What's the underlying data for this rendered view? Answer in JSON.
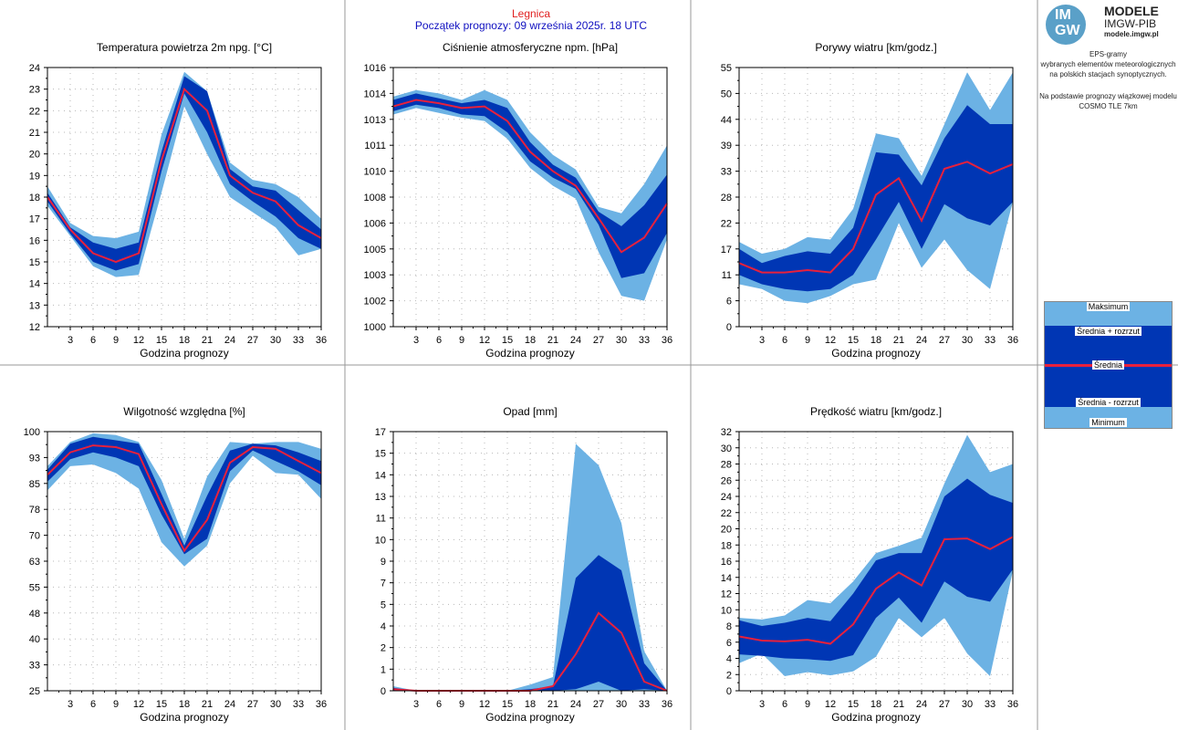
{
  "header": {
    "station": "Legnica",
    "start": "Początek prognozy: 09 września 2025r. 18 UTC"
  },
  "brand": {
    "logo_top": "IM",
    "logo_bottom": "GW",
    "name": "MODELE",
    "org": "IMGW-PIB",
    "url": "modele.imgw.pl",
    "desc1": "EPS-gramy\nwybranych elementów meteorologicznych\nna polskich stacjach  synoptycznych.",
    "desc2": "Na podstawie prognozy wiązkowej modelu\nCOSMO TLE 7km"
  },
  "legend": {
    "max": "Maksimum",
    "upper": "Średnia + rozrzut",
    "mean": "Średnia",
    "lower": "Średnia - rozrzut",
    "min": "Minimum"
  },
  "colors": {
    "outer": "#6cb2e4",
    "inner": "#0036b4",
    "mean": "#e8203c",
    "grid": "#b8b8b8"
  },
  "chart_data": [
    {
      "type": "area",
      "title": "Temperatura powietrza 2m npg. [°C]",
      "xlabel": "Godzina prognozy",
      "x": [
        0,
        3,
        6,
        9,
        12,
        15,
        18,
        21,
        24,
        27,
        30,
        33,
        36
      ],
      "xticks": [
        "3",
        "6",
        "9",
        "12",
        "15",
        "18",
        "21",
        "24",
        "27",
        "30",
        "33",
        "36"
      ],
      "yticks": [
        "12",
        "13",
        "14",
        "15",
        "16",
        "17",
        "18",
        "19",
        "20",
        "21",
        "22",
        "23",
        "24"
      ],
      "ylim": [
        12,
        24
      ],
      "max": [
        18.5,
        16.8,
        16.2,
        16.1,
        16.4,
        20.9,
        23.8,
        22.9,
        19.6,
        18.8,
        18.6,
        18.0,
        17.0
      ],
      "upper": [
        18.2,
        16.6,
        15.9,
        15.6,
        15.9,
        20.1,
        23.6,
        22.9,
        19.3,
        18.5,
        18.3,
        17.4,
        16.5
      ],
      "mean": [
        18.0,
        16.5,
        15.4,
        15.0,
        15.4,
        19.7,
        23.0,
        22.0,
        19.0,
        18.2,
        17.8,
        16.7,
        16.1
      ],
      "lower": [
        17.8,
        16.3,
        15.0,
        14.6,
        14.9,
        19.2,
        22.8,
        21.0,
        18.6,
        17.8,
        17.1,
        16.1,
        15.6
      ],
      "min": [
        17.6,
        16.2,
        14.8,
        14.3,
        14.4,
        18.2,
        22.2,
        20.0,
        18.0,
        17.3,
        16.6,
        15.3,
        15.6
      ]
    },
    {
      "type": "area",
      "title": "Ciśnienie atmosferyczne npm. [hPa]",
      "xlabel": "Godzina prognozy",
      "x": [
        0,
        3,
        6,
        9,
        12,
        15,
        18,
        21,
        24,
        27,
        30,
        33,
        36
      ],
      "xticks": [
        "3",
        "6",
        "9",
        "12",
        "15",
        "18",
        "21",
        "24",
        "27",
        "30",
        "33",
        "36"
      ],
      "yticks": [
        "1000",
        "1002",
        "1003",
        "1005",
        "1006",
        "1008",
        "1010",
        "1011",
        "1013",
        "1014",
        "1016"
      ],
      "ylim": [
        1000,
        1016
      ],
      "max": [
        1014.2,
        1014.6,
        1014.4,
        1014.0,
        1014.6,
        1014.0,
        1012.0,
        1010.6,
        1009.7,
        1007.4,
        1007.0,
        1008.8,
        1011.2
      ],
      "upper": [
        1014.0,
        1014.4,
        1014.1,
        1013.8,
        1014.0,
        1013.5,
        1011.4,
        1010.0,
        1009.2,
        1007.1,
        1006.2,
        1007.5,
        1009.4
      ],
      "mean": [
        1013.6,
        1014.0,
        1013.8,
        1013.5,
        1013.6,
        1012.7,
        1010.8,
        1009.6,
        1008.7,
        1006.7,
        1004.6,
        1005.5,
        1007.6
      ],
      "lower": [
        1013.3,
        1013.7,
        1013.5,
        1013.1,
        1013.0,
        1012.0,
        1010.2,
        1009.2,
        1008.5,
        1006.3,
        1003.0,
        1003.3,
        1005.8
      ],
      "min": [
        1013.1,
        1013.5,
        1013.2,
        1012.9,
        1012.7,
        1011.6,
        1009.8,
        1008.7,
        1007.9,
        1004.6,
        1001.9,
        1001.6,
        1005.4
      ]
    },
    {
      "type": "area",
      "title": "Porywy wiatru [km/godz.]",
      "xlabel": "Godzina prognozy",
      "x": [
        0,
        3,
        6,
        9,
        12,
        15,
        18,
        21,
        24,
        27,
        30,
        33,
        36
      ],
      "xticks": [
        "3",
        "6",
        "9",
        "12",
        "15",
        "18",
        "21",
        "24",
        "27",
        "30",
        "33",
        "36"
      ],
      "yticks": [
        "0",
        "6",
        "11",
        "17",
        "22",
        "28",
        "33",
        "39",
        "44",
        "50",
        "55"
      ],
      "ylim": [
        0,
        55
      ],
      "max": [
        18.0,
        15.5,
        16.5,
        19.0,
        18.5,
        25.0,
        41.0,
        40.0,
        32.0,
        43.0,
        54.0,
        46.0,
        54.0
      ],
      "upper": [
        16.5,
        13.5,
        15.0,
        16.0,
        15.5,
        21.0,
        37.0,
        36.5,
        30.0,
        40.0,
        47.0,
        43.0,
        43.0
      ],
      "mean": [
        13.5,
        11.5,
        11.5,
        12.0,
        11.5,
        16.5,
        28.0,
        31.5,
        22.5,
        33.5,
        35.0,
        32.5,
        34.5
      ],
      "lower": [
        11.0,
        9.0,
        8.0,
        7.5,
        8.0,
        11.0,
        18.5,
        26.5,
        16.5,
        26.0,
        23.0,
        21.5,
        26.5
      ],
      "min": [
        9.0,
        8.0,
        5.5,
        5.0,
        6.5,
        9.0,
        10.0,
        22.0,
        12.5,
        18.5,
        12.0,
        8.0,
        26.5
      ]
    },
    {
      "type": "area",
      "title": "Wilgotność względna [%]",
      "xlabel": "Godzina prognozy",
      "x": [
        0,
        3,
        6,
        9,
        12,
        15,
        18,
        21,
        24,
        27,
        30,
        33,
        36
      ],
      "xticks": [
        "3",
        "6",
        "9",
        "12",
        "15",
        "18",
        "21",
        "24",
        "27",
        "30",
        "33",
        "36"
      ],
      "yticks": [
        "25",
        "33",
        "40",
        "48",
        "55",
        "63",
        "70",
        "78",
        "85",
        "93",
        "100"
      ],
      "ylim": [
        25,
        100
      ],
      "max": [
        90.0,
        97.0,
        99.5,
        99.0,
        97.0,
        86.0,
        69.0,
        87.0,
        97.0,
        96.5,
        97.0,
        97.0,
        95.0
      ],
      "upper": [
        89.0,
        96.5,
        98.5,
        97.5,
        96.5,
        82.0,
        67.0,
        81.5,
        94.5,
        96.5,
        96.0,
        94.0,
        91.5
      ],
      "mean": [
        87.5,
        94.0,
        96.0,
        95.5,
        93.5,
        79.0,
        65.5,
        74.5,
        91.0,
        95.5,
        95.0,
        91.5,
        88.0
      ],
      "lower": [
        85.5,
        92.0,
        94.0,
        92.5,
        90.0,
        76.0,
        64.5,
        69.0,
        88.5,
        94.5,
        91.5,
        88.5,
        84.5
      ],
      "min": [
        83.0,
        90.0,
        90.5,
        88.0,
        83.5,
        68.0,
        61.0,
        67.0,
        85.0,
        93.0,
        88.0,
        87.5,
        80.5
      ]
    },
    {
      "type": "area",
      "title": "Opad [mm]",
      "xlabel": "Godzina prognozy",
      "x": [
        0,
        3,
        6,
        9,
        12,
        15,
        18,
        21,
        24,
        27,
        30,
        33,
        36
      ],
      "xticks": [
        "3",
        "6",
        "9",
        "12",
        "15",
        "18",
        "21",
        "24",
        "27",
        "30",
        "33",
        "36"
      ],
      "yticks": [
        "0",
        "1",
        "2",
        "4",
        "5",
        "7",
        "9",
        "10",
        "11",
        "13",
        "14",
        "15",
        "17"
      ],
      "ylim": [
        0,
        17
      ],
      "max": [
        0.3,
        0.0,
        0.0,
        0.0,
        0.0,
        0.0,
        0.4,
        0.9,
        16.2,
        14.8,
        11.0,
        2.6,
        0.0
      ],
      "upper": [
        0.2,
        0.0,
        0.0,
        0.0,
        0.0,
        0.0,
        0.1,
        0.3,
        7.4,
        8.9,
        7.9,
        1.8,
        0.0
      ],
      "mean": [
        0.1,
        0.0,
        0.0,
        0.0,
        0.0,
        0.0,
        0.0,
        0.3,
        2.4,
        5.1,
        3.8,
        0.6,
        0.0
      ],
      "lower": [
        0.0,
        0.0,
        0.0,
        0.0,
        0.0,
        0.0,
        0.0,
        0.0,
        0.1,
        0.6,
        0.0,
        0.1,
        0.0
      ],
      "min": [
        0.0,
        0.0,
        0.0,
        0.0,
        0.0,
        0.0,
        0.0,
        0.0,
        0.0,
        0.0,
        0.0,
        0.0,
        0.0
      ]
    },
    {
      "type": "area",
      "title": "Prędkość wiatru [km/godz.]",
      "xlabel": "Godzina prognozy",
      "x": [
        0,
        3,
        6,
        9,
        12,
        15,
        18,
        21,
        24,
        27,
        30,
        33,
        36
      ],
      "xticks": [
        "3",
        "6",
        "9",
        "12",
        "15",
        "18",
        "21",
        "24",
        "27",
        "30",
        "33",
        "36"
      ],
      "yticks": [
        "0",
        "2",
        "4",
        "6",
        "8",
        "10",
        "12",
        "14",
        "16",
        "18",
        "20",
        "22",
        "24",
        "26",
        "28",
        "30",
        "32"
      ],
      "ylim": [
        0,
        32
      ],
      "max": [
        9.0,
        8.8,
        9.3,
        11.2,
        10.8,
        13.5,
        17.0,
        17.9,
        18.9,
        25.6,
        31.6,
        27.0,
        28.0
      ],
      "upper": [
        8.7,
        8.0,
        8.4,
        9.0,
        8.6,
        12.0,
        16.1,
        17.0,
        17.0,
        24.0,
        26.2,
        24.2,
        23.2
      ],
      "mean": [
        6.7,
        6.2,
        6.1,
        6.3,
        5.8,
        8.2,
        12.6,
        14.6,
        13.0,
        18.7,
        18.8,
        17.5,
        19.0
      ],
      "lower": [
        4.5,
        4.3,
        4.0,
        3.9,
        3.7,
        4.4,
        9.0,
        11.5,
        8.4,
        13.5,
        11.6,
        11.0,
        15.0
      ],
      "min": [
        3.4,
        4.6,
        1.8,
        2.3,
        1.9,
        2.4,
        4.2,
        9.0,
        6.6,
        9.0,
        4.6,
        1.8,
        14.8
      ]
    }
  ]
}
